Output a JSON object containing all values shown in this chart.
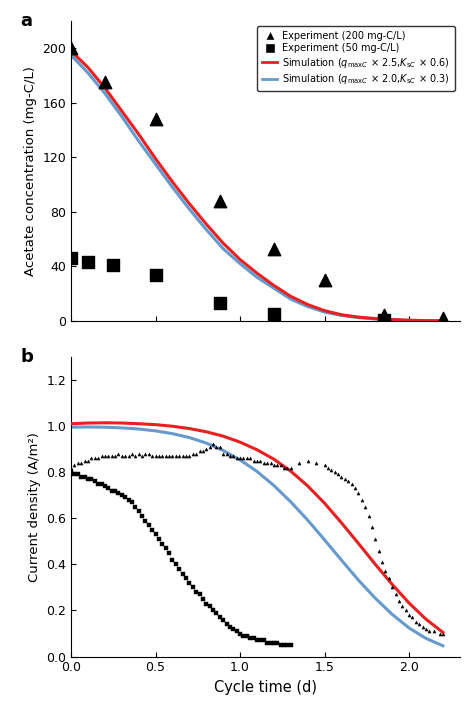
{
  "panel_a_label": "a",
  "panel_b_label": "b",
  "ylabel_a": "Acetate concentration (mg-C/L)",
  "ylabel_b": "Current density (A/m²)",
  "xlabel": "Cycle time (d)",
  "ylim_a": [
    0,
    220
  ],
  "ylim_b": [
    0.0,
    1.3
  ],
  "xlim": [
    0.0,
    2.3
  ],
  "yticks_a": [
    0,
    40,
    80,
    120,
    160,
    200
  ],
  "yticks_b": [
    0.0,
    0.2,
    0.4,
    0.6,
    0.8,
    1.0,
    1.2
  ],
  "xticks": [
    0.0,
    0.5,
    1.0,
    1.5,
    2.0
  ],
  "exp_200_x": [
    0.0,
    0.2,
    0.5,
    0.88,
    1.2,
    1.5,
    1.85,
    2.2
  ],
  "exp_200_y": [
    200,
    175,
    148,
    88,
    53,
    30,
    4,
    2
  ],
  "exp_50_x": [
    0.0,
    0.1,
    0.25,
    0.5,
    0.88,
    1.2,
    1.85
  ],
  "exp_50_y": [
    46,
    43,
    41,
    34,
    13,
    5,
    1
  ],
  "sim_x": [
    0.0,
    0.1,
    0.2,
    0.3,
    0.4,
    0.5,
    0.6,
    0.7,
    0.8,
    0.9,
    1.0,
    1.1,
    1.2,
    1.3,
    1.4,
    1.5,
    1.6,
    1.7,
    1.8,
    1.9,
    2.0,
    2.1,
    2.2
  ],
  "sim_red_a_y": [
    198,
    186,
    171,
    154,
    137,
    119,
    102,
    86,
    71,
    57,
    45,
    35,
    26,
    18,
    12,
    7.5,
    4.5,
    2.8,
    1.7,
    1.0,
    0.5,
    0.2,
    0.1
  ],
  "sim_blue_a_y": [
    195,
    182,
    167,
    150,
    132,
    115,
    98,
    82,
    67,
    53,
    42,
    32,
    24,
    16,
    10.5,
    6.5,
    4.0,
    2.4,
    1.4,
    0.8,
    0.4,
    0.2,
    0.1
  ],
  "exp_tri_b_x": [
    0.0,
    0.02,
    0.04,
    0.06,
    0.08,
    0.1,
    0.12,
    0.14,
    0.16,
    0.18,
    0.2,
    0.22,
    0.24,
    0.26,
    0.28,
    0.3,
    0.32,
    0.34,
    0.36,
    0.38,
    0.4,
    0.42,
    0.44,
    0.46,
    0.48,
    0.5,
    0.52,
    0.54,
    0.56,
    0.58,
    0.6,
    0.62,
    0.64,
    0.66,
    0.68,
    0.7,
    0.72,
    0.74,
    0.76,
    0.78,
    0.8,
    0.82,
    0.84,
    0.86,
    0.88,
    0.9,
    0.92,
    0.94,
    0.96,
    0.98,
    1.0,
    1.02,
    1.04,
    1.06,
    1.08,
    1.1,
    1.12,
    1.14,
    1.16,
    1.18,
    1.2,
    1.22,
    1.24,
    1.26,
    1.28,
    1.3,
    1.35,
    1.4,
    1.45,
    1.5,
    1.52,
    1.54,
    1.56,
    1.58,
    1.6,
    1.62,
    1.64,
    1.66,
    1.68,
    1.7,
    1.72,
    1.74,
    1.76,
    1.78,
    1.8,
    1.82,
    1.84,
    1.86,
    1.88,
    1.9,
    1.92,
    1.94,
    1.96,
    1.98,
    2.0,
    2.02,
    2.04,
    2.06,
    2.08,
    2.1,
    2.12,
    2.15,
    2.18,
    2.2
  ],
  "exp_tri_b_y": [
    0.82,
    0.83,
    0.84,
    0.84,
    0.85,
    0.85,
    0.86,
    0.86,
    0.86,
    0.87,
    0.87,
    0.87,
    0.87,
    0.87,
    0.88,
    0.87,
    0.87,
    0.87,
    0.88,
    0.87,
    0.88,
    0.87,
    0.88,
    0.88,
    0.87,
    0.87,
    0.87,
    0.87,
    0.87,
    0.87,
    0.87,
    0.87,
    0.87,
    0.87,
    0.87,
    0.87,
    0.88,
    0.88,
    0.89,
    0.89,
    0.9,
    0.91,
    0.92,
    0.91,
    0.91,
    0.88,
    0.88,
    0.87,
    0.87,
    0.86,
    0.86,
    0.86,
    0.86,
    0.86,
    0.85,
    0.85,
    0.85,
    0.84,
    0.84,
    0.84,
    0.83,
    0.83,
    0.83,
    0.82,
    0.82,
    0.82,
    0.84,
    0.85,
    0.84,
    0.83,
    0.82,
    0.81,
    0.8,
    0.79,
    0.78,
    0.77,
    0.76,
    0.75,
    0.73,
    0.71,
    0.68,
    0.65,
    0.61,
    0.56,
    0.51,
    0.46,
    0.41,
    0.37,
    0.34,
    0.3,
    0.27,
    0.24,
    0.22,
    0.2,
    0.18,
    0.17,
    0.15,
    0.14,
    0.13,
    0.12,
    0.11,
    0.11,
    0.1,
    0.1
  ],
  "exp_sq_b_x": [
    0.0,
    0.02,
    0.04,
    0.06,
    0.08,
    0.1,
    0.12,
    0.14,
    0.16,
    0.18,
    0.2,
    0.22,
    0.24,
    0.26,
    0.28,
    0.3,
    0.32,
    0.34,
    0.36,
    0.38,
    0.4,
    0.42,
    0.44,
    0.46,
    0.48,
    0.5,
    0.52,
    0.54,
    0.56,
    0.58,
    0.6,
    0.62,
    0.64,
    0.66,
    0.68,
    0.7,
    0.72,
    0.74,
    0.76,
    0.78,
    0.8,
    0.82,
    0.84,
    0.86,
    0.88,
    0.9,
    0.92,
    0.94,
    0.96,
    0.98,
    1.0,
    1.02,
    1.04,
    1.06,
    1.08,
    1.1,
    1.12,
    1.14,
    1.16,
    1.18,
    1.2,
    1.22,
    1.24,
    1.26,
    1.28,
    1.3
  ],
  "exp_sq_b_y": [
    0.8,
    0.79,
    0.79,
    0.78,
    0.78,
    0.77,
    0.77,
    0.76,
    0.75,
    0.75,
    0.74,
    0.73,
    0.72,
    0.72,
    0.71,
    0.7,
    0.69,
    0.68,
    0.67,
    0.65,
    0.63,
    0.61,
    0.59,
    0.57,
    0.55,
    0.53,
    0.51,
    0.49,
    0.47,
    0.45,
    0.42,
    0.4,
    0.38,
    0.36,
    0.34,
    0.32,
    0.3,
    0.28,
    0.27,
    0.25,
    0.23,
    0.22,
    0.2,
    0.19,
    0.17,
    0.16,
    0.14,
    0.13,
    0.12,
    0.11,
    0.1,
    0.09,
    0.09,
    0.08,
    0.08,
    0.07,
    0.07,
    0.07,
    0.06,
    0.06,
    0.06,
    0.06,
    0.05,
    0.05,
    0.05,
    0.05
  ],
  "sim_red_b_y": [
    1.01,
    1.013,
    1.014,
    1.013,
    1.01,
    1.006,
    0.999,
    0.989,
    0.975,
    0.956,
    0.93,
    0.897,
    0.856,
    0.804,
    0.74,
    0.665,
    0.58,
    0.491,
    0.4,
    0.313,
    0.232,
    0.162,
    0.105
  ],
  "sim_blue_b_y": [
    0.995,
    0.996,
    0.995,
    0.992,
    0.987,
    0.979,
    0.967,
    0.95,
    0.926,
    0.894,
    0.853,
    0.803,
    0.742,
    0.671,
    0.592,
    0.506,
    0.418,
    0.332,
    0.253,
    0.183,
    0.124,
    0.079,
    0.047
  ],
  "red_color": "#e82020",
  "blue_color": "#6699cc",
  "marker_color": "black",
  "legend_tri": "Experiment (200 mg-C/L)",
  "legend_sq": "Experiment (50 mg-C/L)",
  "legend_red": "Simulation ($q_{\\mathrm{max}C}$ × 2.5,$K_{\\mathrm{s}C}$ × 0.6)",
  "legend_blue": "Simulation ($q_{\\mathrm{max}C}$ × 2.0,$K_{\\mathrm{s}C}$ × 0.3)"
}
